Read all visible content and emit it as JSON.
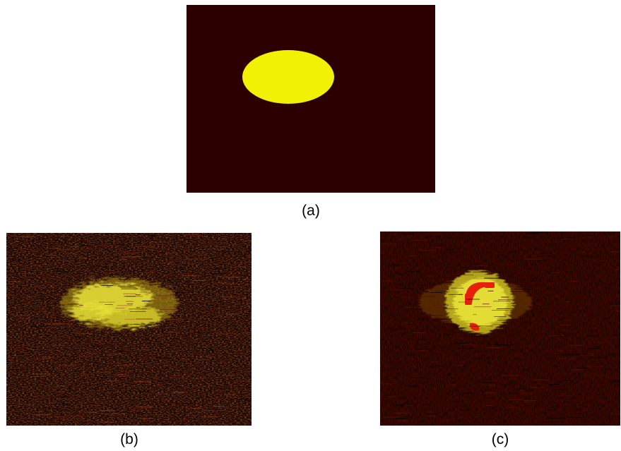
{
  "figure": {
    "panels": [
      {
        "id": "a",
        "label": "(a)",
        "description_kind": "ground-truth",
        "colors": {
          "background": "#2d0000",
          "object": "#f1f104"
        }
      },
      {
        "id": "b",
        "label": "(b)",
        "description_kind": "noisy-reconstruction",
        "colors": {
          "background": "#1f0500",
          "speckle_dark": "#000000",
          "speckle_mid": "#5a1a08",
          "signal": "#e8e23a"
        }
      },
      {
        "id": "c",
        "label": "(c)",
        "description_kind": "improved-reconstruction",
        "colors": {
          "background": "#3a0700",
          "speckle_dark": "#000000",
          "signal": "#e8e23a",
          "hotspot": "#e8200a"
        }
      }
    ]
  }
}
